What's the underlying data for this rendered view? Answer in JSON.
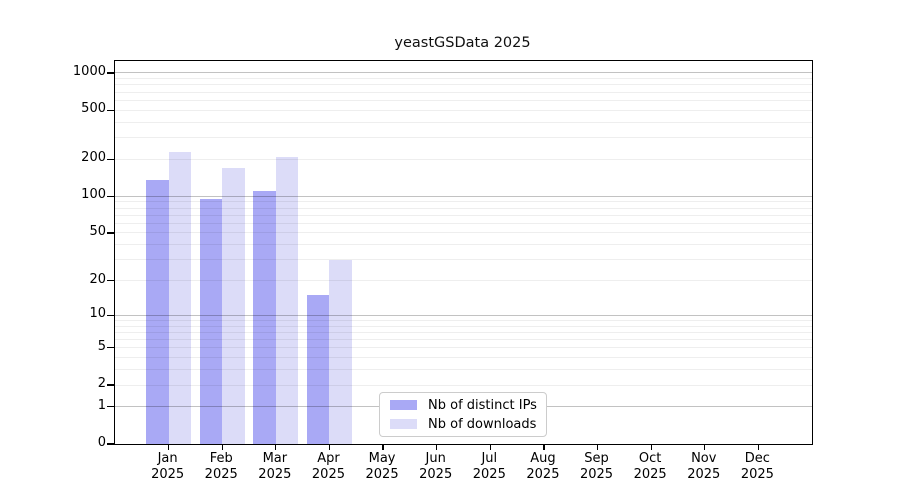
{
  "chart_data": {
    "type": "bar",
    "title": "yeastGSData 2025",
    "months": [
      "Jan",
      "Feb",
      "Mar",
      "Apr",
      "May",
      "Jun",
      "Jul",
      "Aug",
      "Sep",
      "Oct",
      "Nov",
      "Dec"
    ],
    "year": "2025",
    "series": [
      {
        "name": "Nb of distinct IPs",
        "color": "#a9a9f5",
        "values": [
          135,
          95,
          110,
          15,
          0,
          0,
          0,
          0,
          0,
          0,
          0,
          0
        ]
      },
      {
        "name": "Nb of downloads",
        "color": "#dcdcf8",
        "values": [
          230,
          170,
          210,
          30,
          0,
          0,
          0,
          0,
          0,
          0,
          0,
          0
        ]
      }
    ],
    "y_axis": {
      "scale": "log1p",
      "tick_labels": [
        1000,
        500,
        200,
        100,
        50,
        20,
        10,
        5,
        2,
        1,
        0
      ],
      "major_gridlines": [
        1,
        10,
        100,
        1000
      ],
      "ylim": [
        0,
        1250
      ]
    },
    "legend": {
      "position": "lower-center"
    },
    "colors": {
      "grid_major": "rgba(0,0,0,0.24)",
      "grid_minor": "rgba(0,0,0,0.065)",
      "axis_frame": "#000000",
      "background": "#ffffff"
    }
  }
}
